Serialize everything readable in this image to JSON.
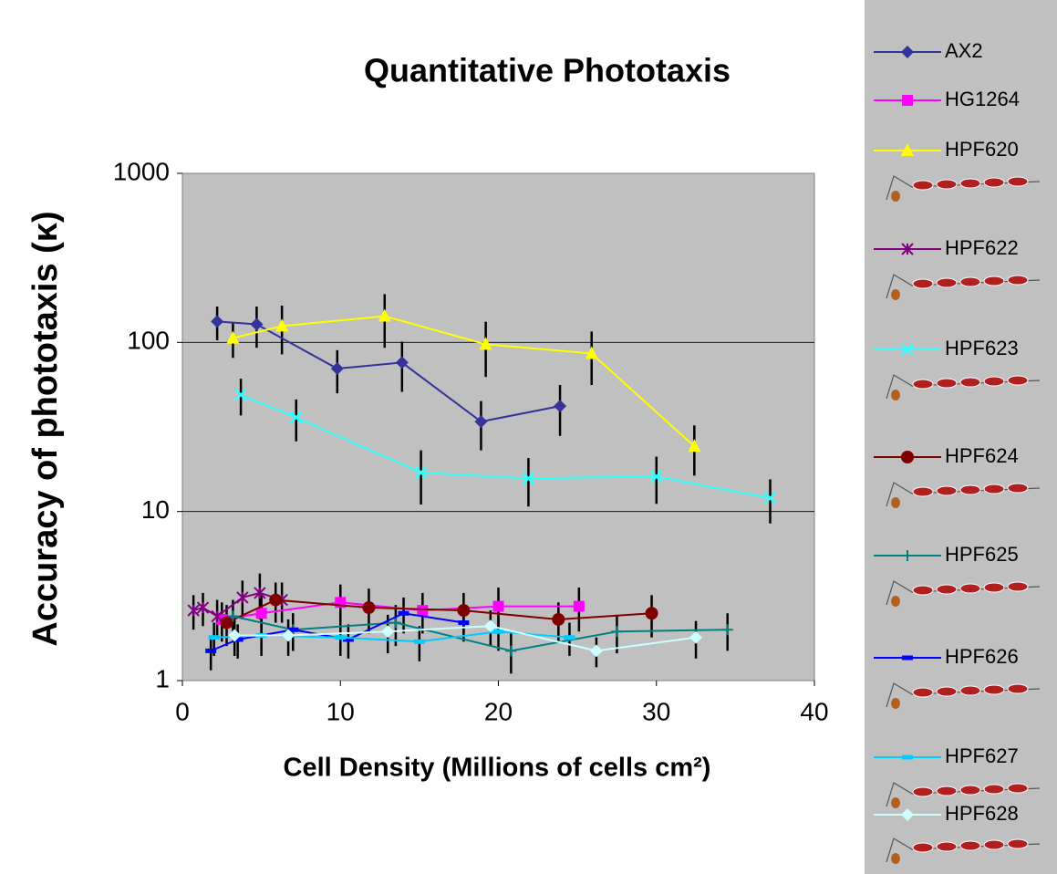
{
  "chart_data": {
    "type": "line",
    "title": "Quantitative Phototaxis",
    "x_label": "Cell Density (Millions of cells cm²)",
    "y_label": "Accuracy of phototaxis (κ)",
    "xlim": [
      0,
      40
    ],
    "xticks": [
      0,
      10,
      20,
      30,
      40
    ],
    "ylim": [
      1,
      1000
    ],
    "yticks": [
      1,
      10,
      100,
      1000
    ],
    "y_scale": "log",
    "grid": true,
    "legend": "right",
    "series": [
      {
        "name": "AX2",
        "color": "#333399",
        "marker": "diamond",
        "x": [
          2.2,
          4.7,
          9.8,
          13.9,
          18.9,
          23.9
        ],
        "values": [
          133,
          128,
          70,
          76,
          34,
          42
        ],
        "errors": [
          30,
          35,
          20,
          25,
          11,
          14
        ]
      },
      {
        "name": "HG1264",
        "color": "#ff00ff",
        "marker": "square",
        "x": [
          2.5,
          5,
          10,
          15.2,
          20,
          25.1
        ],
        "values": [
          2.3,
          2.5,
          2.9,
          2.6,
          2.75,
          2.75
        ],
        "errors": [
          0.6,
          0.7,
          0.8,
          0.7,
          0.8,
          0.8
        ]
      },
      {
        "name": "HPF620",
        "color": "#ffff00",
        "marker": "triangle",
        "x": [
          3.2,
          6.3,
          12.8,
          19.2,
          25.9,
          32.4
        ],
        "values": [
          106,
          125,
          143,
          97.5,
          86,
          24.3
        ],
        "errors": [
          25,
          40,
          50,
          35,
          30,
          8
        ]
      },
      {
        "name": "HPF622",
        "color": "#800080",
        "marker": "asterisk",
        "x": [
          0.7,
          1.3,
          2.2,
          3.8,
          4.9,
          6.3
        ],
        "values": [
          2.6,
          2.7,
          2.4,
          3.1,
          3.3,
          3.0
        ],
        "errors": [
          0.6,
          0.6,
          0.6,
          0.8,
          1.0,
          0.8
        ]
      },
      {
        "name": "HPF623",
        "color": "#33ffff",
        "marker": "x",
        "x": [
          3.7,
          7.2,
          15.1,
          21.9,
          30,
          37.2
        ],
        "values": [
          49,
          36,
          17,
          15.7,
          16.1,
          12
        ],
        "errors": [
          12,
          10,
          6,
          5,
          5,
          3.5
        ]
      },
      {
        "name": "HPF624",
        "color": "#800000",
        "marker": "circle",
        "x": [
          2.8,
          5.9,
          11.8,
          17.8,
          23.8,
          29.7
        ],
        "values": [
          2.2,
          3.0,
          2.7,
          2.6,
          2.3,
          2.5
        ],
        "errors": [
          0.6,
          0.8,
          0.8,
          0.7,
          0.6,
          0.7
        ]
      },
      {
        "name": "HPF625",
        "color": "#008080",
        "marker": "plus",
        "x": [
          3.2,
          7,
          13.5,
          20.8,
          27.5,
          34.5
        ],
        "values": [
          2.4,
          2.0,
          2.2,
          1.5,
          1.95,
          2.0
        ],
        "errors": [
          0.6,
          0.5,
          0.6,
          0.4,
          0.5,
          0.5
        ]
      },
      {
        "name": "HPF626",
        "color": "#0000ff",
        "marker": "dash",
        "x": [
          1.8,
          3.5,
          7,
          10.5,
          14,
          17.8
        ],
        "values": [
          1.5,
          1.75,
          2.0,
          1.75,
          2.5,
          2.2
        ],
        "errors": [
          0.35,
          0.4,
          0.5,
          0.4,
          0.6,
          0.5
        ]
      },
      {
        "name": "HPF627",
        "color": "#00ccff",
        "marker": "dash",
        "x": [
          2,
          5,
          10,
          15,
          20,
          24.5
        ],
        "values": [
          1.8,
          1.85,
          1.8,
          1.7,
          1.95,
          1.8
        ],
        "errors": [
          0.4,
          0.45,
          0.4,
          0.4,
          0.45,
          0.4
        ]
      },
      {
        "name": "HPF628",
        "color": "#ccffff",
        "marker": "diamond",
        "x": [
          3.3,
          6.7,
          13,
          19.5,
          26.2,
          32.5
        ],
        "values": [
          1.85,
          1.85,
          1.95,
          2.1,
          1.5,
          1.8
        ],
        "errors": [
          0.45,
          0.45,
          0.5,
          0.5,
          0.3,
          0.45
        ]
      }
    ]
  }
}
